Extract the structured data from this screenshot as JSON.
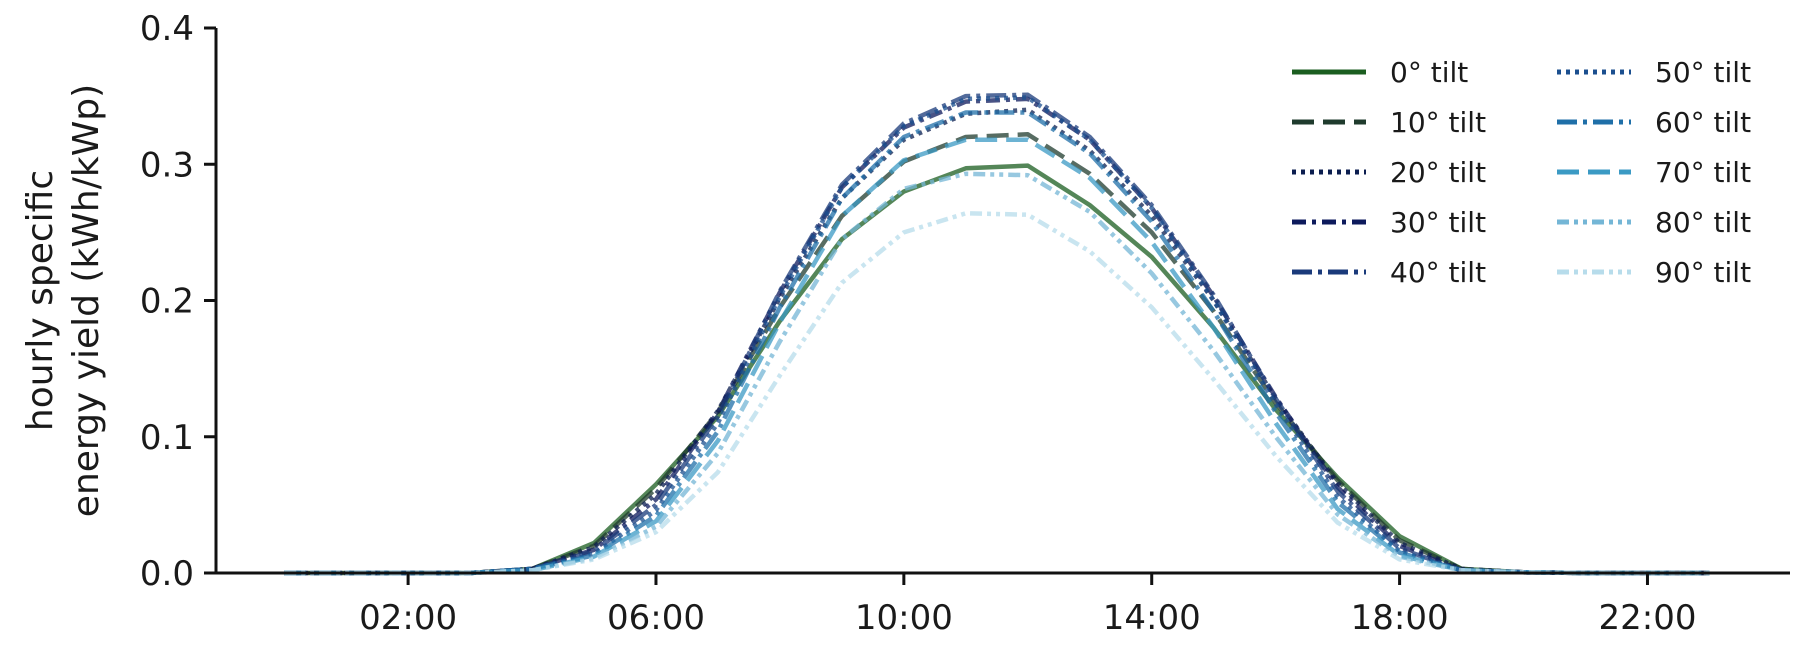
{
  "chart_data": {
    "type": "line",
    "title": "",
    "xlabel": "",
    "ylabel_lines": [
      "hourly specific",
      "energy yield (kWh/kWp)"
    ],
    "ylim": [
      0,
      0.4
    ],
    "yticks": [
      0.0,
      0.1,
      0.2,
      0.3,
      0.4
    ],
    "ytick_labels": [
      "0.0",
      "0.1",
      "0.2",
      "0.3",
      "0.4"
    ],
    "xticks": [
      2,
      6,
      10,
      14,
      18,
      22
    ],
    "xtick_labels": [
      "02:00",
      "06:00",
      "10:00",
      "14:00",
      "18:00",
      "22:00"
    ],
    "x_unit": "hour of day",
    "x": [
      0,
      1,
      2,
      3,
      4,
      5,
      6,
      7,
      8,
      9,
      10,
      11,
      12,
      13,
      14,
      15,
      16,
      17,
      18,
      19,
      20,
      21,
      22,
      23
    ],
    "grid": false,
    "legend_position": "top-right",
    "series": [
      {
        "name": "0° tilt",
        "color": "#1b5e20",
        "dash": "solid",
        "values": [
          0,
          0,
          0,
          0,
          0.003,
          0.022,
          0.065,
          0.115,
          0.185,
          0.245,
          0.28,
          0.297,
          0.299,
          0.27,
          0.232,
          0.18,
          0.12,
          0.07,
          0.027,
          0.003,
          0.0005,
          0,
          0,
          0
        ]
      },
      {
        "name": "10° tilt",
        "color": "#1f3b2d",
        "dash": "dashed",
        "values": [
          0,
          0,
          0,
          0,
          0.003,
          0.02,
          0.062,
          0.118,
          0.195,
          0.262,
          0.302,
          0.32,
          0.322,
          0.293,
          0.25,
          0.192,
          0.125,
          0.068,
          0.024,
          0.003,
          0.0005,
          0,
          0,
          0
        ]
      },
      {
        "name": "20° tilt",
        "color": "#0b1d4f",
        "dash": "dotted",
        "values": [
          0,
          0,
          0,
          0,
          0.003,
          0.019,
          0.058,
          0.119,
          0.202,
          0.275,
          0.318,
          0.337,
          0.34,
          0.31,
          0.262,
          0.2,
          0.128,
          0.066,
          0.022,
          0.003,
          0.0005,
          0,
          0,
          0
        ]
      },
      {
        "name": "30° tilt",
        "color": "#0d1a5c",
        "dash": "dashdot",
        "values": [
          0,
          0,
          0,
          0,
          0.003,
          0.017,
          0.054,
          0.118,
          0.206,
          0.283,
          0.327,
          0.346,
          0.348,
          0.318,
          0.268,
          0.203,
          0.129,
          0.063,
          0.02,
          0.002,
          0.0005,
          0,
          0,
          0
        ]
      },
      {
        "name": "40° tilt",
        "color": "#1a3a7a",
        "dash": "longdashdot",
        "values": [
          0,
          0,
          0,
          0,
          0.003,
          0.016,
          0.05,
          0.115,
          0.207,
          0.285,
          0.33,
          0.35,
          0.351,
          0.32,
          0.27,
          0.204,
          0.128,
          0.06,
          0.018,
          0.002,
          0.0005,
          0,
          0,
          0
        ]
      },
      {
        "name": "50° tilt",
        "color": "#1b4f8f",
        "dash": "dotted",
        "values": [
          0,
          0,
          0,
          0,
          0.003,
          0.014,
          0.046,
          0.11,
          0.203,
          0.283,
          0.328,
          0.348,
          0.349,
          0.318,
          0.268,
          0.2,
          0.124,
          0.056,
          0.016,
          0.002,
          0.0005,
          0,
          0,
          0
        ]
      },
      {
        "name": "60° tilt",
        "color": "#1f6fa8",
        "dash": "longdashdot",
        "values": [
          0,
          0,
          0,
          0,
          0.003,
          0.013,
          0.042,
          0.104,
          0.195,
          0.275,
          0.32,
          0.338,
          0.338,
          0.308,
          0.258,
          0.192,
          0.118,
          0.052,
          0.015,
          0.002,
          0.0005,
          0,
          0,
          0
        ]
      },
      {
        "name": "70° tilt",
        "color": "#3b9ac4",
        "dash": "dashed",
        "values": [
          0,
          0,
          0,
          0,
          0.002,
          0.012,
          0.038,
          0.097,
          0.184,
          0.262,
          0.303,
          0.318,
          0.318,
          0.29,
          0.243,
          0.18,
          0.11,
          0.047,
          0.013,
          0.002,
          0.0005,
          0,
          0,
          0
        ]
      },
      {
        "name": "80° tilt",
        "color": "#74b6d6",
        "dash": "dashdotdot",
        "values": [
          0,
          0,
          0,
          0,
          0.002,
          0.011,
          0.034,
          0.088,
          0.17,
          0.245,
          0.282,
          0.293,
          0.292,
          0.265,
          0.22,
          0.163,
          0.1,
          0.043,
          0.012,
          0.002,
          0.0005,
          0,
          0,
          0
        ]
      },
      {
        "name": "90° tilt",
        "color": "#b7dceb",
        "dash": "dashdotdot",
        "values": [
          0,
          0,
          0,
          0,
          0.002,
          0.01,
          0.03,
          0.074,
          0.145,
          0.213,
          0.25,
          0.264,
          0.263,
          0.236,
          0.195,
          0.142,
          0.086,
          0.037,
          0.01,
          0.002,
          0.0005,
          0,
          0,
          0
        ]
      }
    ]
  }
}
